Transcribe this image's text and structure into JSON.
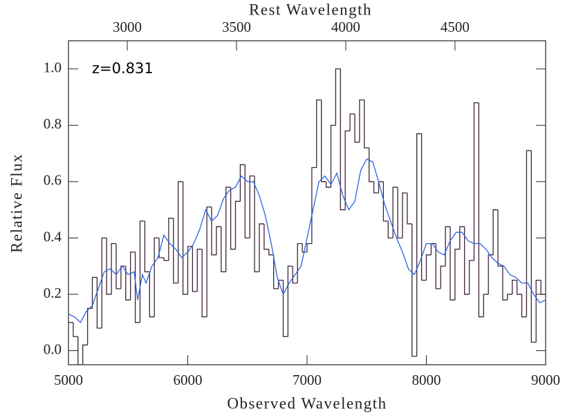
{
  "chart_data": {
    "type": "line",
    "xlabel": "Observed Wavelength",
    "ylabel": "Relative Flux",
    "x2label": "Rest Wavelength",
    "annotation": "z=0.831",
    "xlim": [
      5000,
      9000
    ],
    "xticks": [
      5000,
      6000,
      7000,
      8000,
      9000
    ],
    "x2lim": [
      2731,
      4915
    ],
    "x2ticks": [
      3000,
      3500,
      4000,
      4500
    ],
    "ylim": [
      -0.05,
      1.1
    ],
    "yticks": [
      {
        "value": 0,
        "label": "0.0"
      },
      0.2,
      0.4,
      0.6,
      0.8,
      {
        "value": 1,
        "label": "1.0"
      }
    ],
    "series": [
      {
        "style": "step",
        "color": "#3b2338",
        "bins": [
          5000,
          5040,
          5080,
          5120,
          5160,
          5200,
          5240,
          5280,
          5320,
          5360,
          5400,
          5440,
          5480,
          5520,
          5560,
          5600,
          5640,
          5680,
          5720,
          5760,
          5800,
          5840,
          5880,
          5920,
          5960,
          6000,
          6040,
          6080,
          6120,
          6160,
          6200,
          6240,
          6280,
          6320,
          6360,
          6400,
          6440,
          6480,
          6520,
          6560,
          6600,
          6640,
          6680,
          6720,
          6760,
          6800,
          6840,
          6880,
          6920,
          6960,
          7000,
          7040,
          7080,
          7120,
          7160,
          7200,
          7240,
          7280,
          7320,
          7360,
          7400,
          7440,
          7480,
          7520,
          7560,
          7600,
          7640,
          7680,
          7720,
          7760,
          7800,
          7840,
          7880,
          7920,
          7960,
          8000,
          8040,
          8080,
          8120,
          8160,
          8200,
          8240,
          8280,
          8320,
          8360,
          8400,
          8440,
          8480,
          8520,
          8560,
          8600,
          8640,
          8680,
          8720,
          8760,
          8800,
          8840,
          8880,
          8920,
          8960,
          9000
        ],
        "values": [
          0.1,
          0.05,
          -0.05,
          0.02,
          0.15,
          0.26,
          0.08,
          0.4,
          0.2,
          0.38,
          0.22,
          0.3,
          0.18,
          0.35,
          0.1,
          0.46,
          0.28,
          0.12,
          0.4,
          0.33,
          0.32,
          0.47,
          0.24,
          0.6,
          0.2,
          0.37,
          0.21,
          0.36,
          0.12,
          0.51,
          0.34,
          0.44,
          0.28,
          0.58,
          0.36,
          0.53,
          0.66,
          0.4,
          0.62,
          0.28,
          0.45,
          0.36,
          0.34,
          0.22,
          0.25,
          0.05,
          0.3,
          0.24,
          0.38,
          0.35,
          0.38,
          0.65,
          0.89,
          0.6,
          0.58,
          0.8,
          1.0,
          0.5,
          0.78,
          0.84,
          0.74,
          0.89,
          0.72,
          0.6,
          0.56,
          0.6,
          0.46,
          0.4,
          0.58,
          0.4,
          0.56,
          0.45,
          -0.02,
          0.77,
          0.25,
          0.34,
          0.38,
          0.22,
          0.3,
          0.44,
          0.18,
          0.36,
          0.44,
          0.2,
          0.32,
          0.88,
          0.12,
          0.2,
          0.34,
          0.5,
          0.3,
          0.18,
          0.2,
          0.25,
          0.2,
          0.12,
          0.71,
          0.03,
          0.25,
          0.2
        ]
      },
      {
        "style": "smooth",
        "color": "#2a62e0",
        "x": [
          5000,
          5050,
          5100,
          5150,
          5200,
          5250,
          5300,
          5350,
          5400,
          5450,
          5500,
          5550,
          5580,
          5620,
          5650,
          5700,
          5750,
          5800,
          5850,
          5900,
          5950,
          6000,
          6050,
          6100,
          6150,
          6200,
          6250,
          6300,
          6350,
          6400,
          6450,
          6500,
          6550,
          6600,
          6650,
          6700,
          6750,
          6800,
          6850,
          6900,
          6950,
          7000,
          7050,
          7100,
          7150,
          7200,
          7250,
          7300,
          7350,
          7400,
          7450,
          7500,
          7550,
          7600,
          7650,
          7700,
          7750,
          7800,
          7850,
          7900,
          7950,
          8000,
          8050,
          8100,
          8150,
          8200,
          8250,
          8300,
          8350,
          8400,
          8450,
          8500,
          8550,
          8600,
          8650,
          8700,
          8750,
          8800,
          8850,
          8900,
          8950,
          9000
        ],
        "values": [
          0.13,
          0.12,
          0.1,
          0.14,
          0.16,
          0.22,
          0.28,
          0.29,
          0.27,
          0.3,
          0.27,
          0.28,
          0.18,
          0.27,
          0.24,
          0.3,
          0.33,
          0.41,
          0.38,
          0.36,
          0.33,
          0.35,
          0.38,
          0.43,
          0.5,
          0.46,
          0.48,
          0.54,
          0.57,
          0.58,
          0.62,
          0.6,
          0.6,
          0.55,
          0.48,
          0.38,
          0.26,
          0.2,
          0.24,
          0.27,
          0.3,
          0.4,
          0.5,
          0.6,
          0.62,
          0.59,
          0.63,
          0.55,
          0.5,
          0.53,
          0.64,
          0.68,
          0.67,
          0.6,
          0.52,
          0.46,
          0.4,
          0.35,
          0.29,
          0.27,
          0.32,
          0.38,
          0.38,
          0.35,
          0.34,
          0.39,
          0.42,
          0.42,
          0.39,
          0.38,
          0.38,
          0.36,
          0.33,
          0.31,
          0.3,
          0.27,
          0.26,
          0.24,
          0.24,
          0.2,
          0.17,
          0.18
        ]
      }
    ]
  }
}
